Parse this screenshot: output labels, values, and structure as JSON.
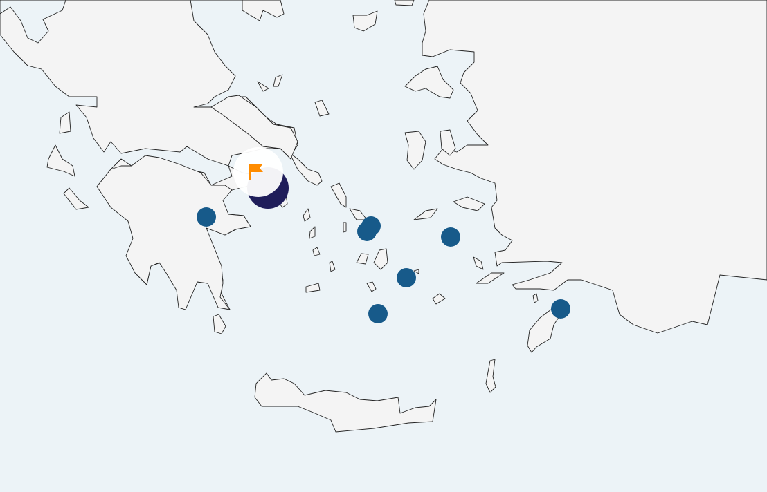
{
  "map": {
    "colors": {
      "sea": "#ecf3f7",
      "land": "#f4f4f4",
      "coast": "#222222",
      "marker": "#175a8a",
      "selected_marker": "#1f1d5a",
      "flag": "#ff8c00",
      "flag_badge": "#ffffff"
    },
    "markers": [
      {
        "id": "m1",
        "icon": "circle-marker"
      },
      {
        "id": "m2",
        "icon": "circle-marker"
      },
      {
        "id": "m3",
        "icon": "circle-marker"
      },
      {
        "id": "m4",
        "icon": "circle-marker"
      },
      {
        "id": "m5",
        "icon": "circle-marker"
      },
      {
        "id": "m6",
        "icon": "circle-marker"
      },
      {
        "id": "m7",
        "icon": "circle-marker"
      }
    ],
    "selected_marker": {
      "icon": "flag-icon"
    }
  }
}
